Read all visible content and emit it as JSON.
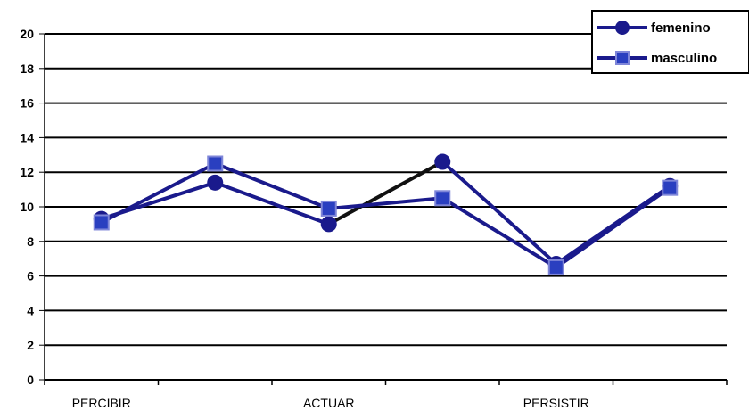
{
  "chart_data": {
    "type": "line",
    "categories": [
      "PERCIBIR",
      "",
      "ACTUAR",
      "",
      "PERSISTIR",
      ""
    ],
    "ylim": [
      0,
      20
    ],
    "yticks": [
      "0",
      "2",
      "4",
      "6",
      "8",
      "10",
      "12",
      "14",
      "16",
      "18",
      "20"
    ],
    "grid": true,
    "legend_position": "top-right",
    "series": [
      {
        "name": "femenino",
        "marker": "circle",
        "values": [
          9.3,
          11.4,
          9.0,
          12.6,
          6.7,
          11.2
        ]
      },
      {
        "name": "masculino",
        "marker": "square",
        "values": [
          9.1,
          12.5,
          9.9,
          10.5,
          6.5,
          11.1
        ]
      }
    ],
    "colors": {
      "line": "#1a1a8c",
      "marker_fill_circle": "#1a1a8c",
      "marker_fill_square": "#2a3fc0",
      "marker_stroke_square": "#7f86d8",
      "segment_dark": "#111111",
      "grid": "#000000"
    }
  }
}
